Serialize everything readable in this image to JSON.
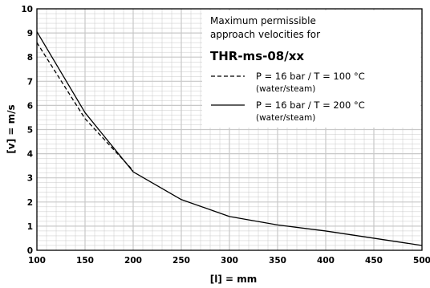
{
  "chart_data": {
    "type": "line",
    "xlabel": "[l] = mm",
    "ylabel": "[v] = m/s",
    "xlim": [
      100,
      500
    ],
    "ylim": [
      0,
      10
    ],
    "x_ticks": [
      100,
      150,
      200,
      250,
      300,
      350,
      400,
      450,
      500
    ],
    "y_ticks": [
      0,
      1,
      2,
      3,
      4,
      5,
      6,
      7,
      8,
      9,
      10
    ],
    "grid": true,
    "legend_position": "top-right",
    "legend": {
      "heading_line1": "Maximum permissible",
      "heading_line2": "approach velocities for",
      "model": "THR-ms-08/xx"
    },
    "series": [
      {
        "label_line1": "P =  16 bar  /  T = 100 °C",
        "label_line2": "(water/steam)",
        "style": "dashed",
        "x": [
          100,
          150,
          200
        ],
        "y": [
          8.6,
          5.45,
          3.3
        ]
      },
      {
        "label_line1": "P =  16 bar  /  T = 200 °C",
        "label_line2": "(water/steam)",
        "style": "solid",
        "x": [
          100,
          150,
          200,
          250,
          300,
          350,
          400,
          450,
          500
        ],
        "y": [
          9.05,
          5.7,
          3.25,
          2.1,
          1.4,
          1.05,
          0.8,
          0.5,
          0.2
        ]
      }
    ],
    "colors": {
      "line": "#000000",
      "grid_minor": "#c8c8c8",
      "grid_major": "#c8c8c8",
      "background": "#ffffff"
    }
  }
}
